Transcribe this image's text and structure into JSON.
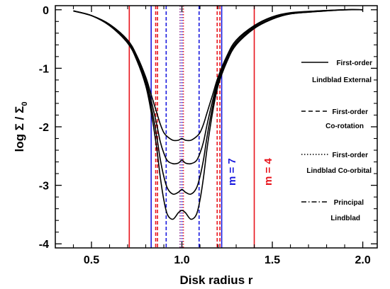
{
  "chart_data": {
    "type": "line",
    "xlabel": "Disk radius r",
    "ylabel_main": "log Σ / Σ",
    "ylabel_sub": "0",
    "xlim": [
      0.3,
      2.08
    ],
    "ylim": [
      -4.07,
      0.07
    ],
    "xticks": [
      0.5,
      1.0,
      1.5,
      2.0
    ],
    "xtick_labels": [
      "0.5",
      "1.0",
      "1.5",
      "2.0"
    ],
    "yticks": [
      0,
      -1,
      -2,
      -3,
      -4
    ],
    "ytick_labels": [
      "0",
      "-1",
      "-2",
      "-3",
      "-4"
    ],
    "grid": false,
    "series": [
      {
        "x": [
          0.4,
          0.5,
          0.6,
          0.7,
          0.75,
          0.8,
          0.83,
          0.86,
          0.88,
          0.9,
          0.92,
          0.95,
          0.98,
          1.0,
          1.02,
          1.05,
          1.08,
          1.1,
          1.12,
          1.14,
          1.17,
          1.2,
          1.25,
          1.3,
          1.4,
          1.5,
          1.6,
          1.75,
          1.9,
          2.0
        ],
        "y": [
          -0.02,
          -0.1,
          -0.25,
          -0.52,
          -0.78,
          -1.15,
          -1.45,
          -1.75,
          -1.95,
          -2.1,
          -2.17,
          -2.23,
          -2.23,
          -2.2,
          -2.23,
          -2.23,
          -2.17,
          -2.1,
          -1.95,
          -1.75,
          -1.45,
          -1.15,
          -0.78,
          -0.52,
          -0.27,
          -0.12,
          -0.05,
          -0.02,
          0.0,
          0.0
        ]
      },
      {
        "x": [
          0.4,
          0.5,
          0.6,
          0.7,
          0.75,
          0.8,
          0.83,
          0.86,
          0.88,
          0.9,
          0.92,
          0.95,
          0.98,
          1.0,
          1.02,
          1.05,
          1.08,
          1.1,
          1.12,
          1.14,
          1.17,
          1.2,
          1.25,
          1.3,
          1.4,
          1.5,
          1.6,
          1.75,
          1.9,
          2.0
        ],
        "y": [
          -0.02,
          -0.1,
          -0.25,
          -0.52,
          -0.8,
          -1.2,
          -1.55,
          -1.95,
          -2.25,
          -2.45,
          -2.58,
          -2.63,
          -2.62,
          -2.57,
          -2.62,
          -2.63,
          -2.58,
          -2.45,
          -2.25,
          -1.95,
          -1.55,
          -1.2,
          -0.82,
          -0.55,
          -0.28,
          -0.13,
          -0.06,
          -0.02,
          0.0,
          0.0
        ]
      },
      {
        "x": [
          0.4,
          0.5,
          0.6,
          0.7,
          0.75,
          0.8,
          0.83,
          0.86,
          0.88,
          0.9,
          0.92,
          0.95,
          0.98,
          1.0,
          1.02,
          1.05,
          1.08,
          1.1,
          1.12,
          1.14,
          1.17,
          1.2,
          1.25,
          1.3,
          1.4,
          1.5,
          1.6,
          1.75,
          1.9,
          2.0
        ],
        "y": [
          -0.02,
          -0.1,
          -0.27,
          -0.55,
          -0.83,
          -1.25,
          -1.65,
          -2.15,
          -2.55,
          -2.85,
          -3.05,
          -3.15,
          -3.12,
          -3.07,
          -3.12,
          -3.15,
          -3.05,
          -2.85,
          -2.55,
          -2.15,
          -1.65,
          -1.25,
          -0.85,
          -0.58,
          -0.3,
          -0.15,
          -0.07,
          -0.03,
          0.0,
          0.0
        ]
      },
      {
        "x": [
          0.4,
          0.5,
          0.6,
          0.7,
          0.75,
          0.8,
          0.83,
          0.86,
          0.88,
          0.9,
          0.92,
          0.95,
          0.98,
          1.0,
          1.02,
          1.05,
          1.08,
          1.1,
          1.12,
          1.14,
          1.17,
          1.2,
          1.25,
          1.3,
          1.4,
          1.5,
          1.6,
          1.75,
          1.9,
          2.0
        ],
        "y": [
          -0.02,
          -0.1,
          -0.27,
          -0.57,
          -0.86,
          -1.3,
          -1.75,
          -2.35,
          -2.85,
          -3.25,
          -3.5,
          -3.58,
          -3.47,
          -3.43,
          -3.47,
          -3.58,
          -3.5,
          -3.25,
          -2.85,
          -2.35,
          -1.75,
          -1.3,
          -0.88,
          -0.6,
          -0.32,
          -0.16,
          -0.07,
          -0.03,
          0.0,
          0.0
        ]
      }
    ],
    "resonance_lines": [
      {
        "x": 0.709,
        "color": "#e8141c",
        "style": "solid"
      },
      {
        "x": 1.4,
        "color": "#e8141c",
        "style": "solid"
      },
      {
        "x": 0.855,
        "color": "#e8141c",
        "style": "dashed"
      },
      {
        "x": 0.865,
        "color": "#e8141c",
        "style": "dashed"
      },
      {
        "x": 1.195,
        "color": "#e8141c",
        "style": "dashed"
      },
      {
        "x": 1.21,
        "color": "#e8141c",
        "style": "dashed"
      },
      {
        "x": 0.83,
        "color": "#1a1adf",
        "style": "solid"
      },
      {
        "x": 1.22,
        "color": "#1a1adf",
        "style": "solid"
      },
      {
        "x": 0.913,
        "color": "#1a1adf",
        "style": "dashed"
      },
      {
        "x": 1.095,
        "color": "#1a1adf",
        "style": "dashed"
      },
      {
        "x": 0.99,
        "color": "#8a1e8a",
        "style": "dotted"
      },
      {
        "x": 1.0,
        "color": "#1a1adf",
        "style": "dotted"
      },
      {
        "x": 1.008,
        "color": "#e8141c",
        "style": "dotted"
      }
    ],
    "annotations": [
      {
        "text": "m = 7",
        "color": "#1a1adf"
      },
      {
        "text": "m = 4",
        "color": "#e8141c"
      }
    ],
    "legend": {
      "placement": "right",
      "entries": [
        {
          "line1": "First-order",
          "line2": "Lindblad External",
          "style": "solid"
        },
        {
          "line1": "First-order",
          "line2": "Co-rotation",
          "style": "dashed"
        },
        {
          "line1": "First-order",
          "line2": "Lindblad Co-orbital",
          "style": "dotted"
        },
        {
          "line1": "Principal",
          "line2": "Lindblad",
          "style": "dashdot"
        }
      ]
    },
    "colors": {
      "red": "#e8141c",
      "blue": "#1a1adf",
      "purple": "#8a1e8a",
      "curve": "#000000"
    }
  }
}
